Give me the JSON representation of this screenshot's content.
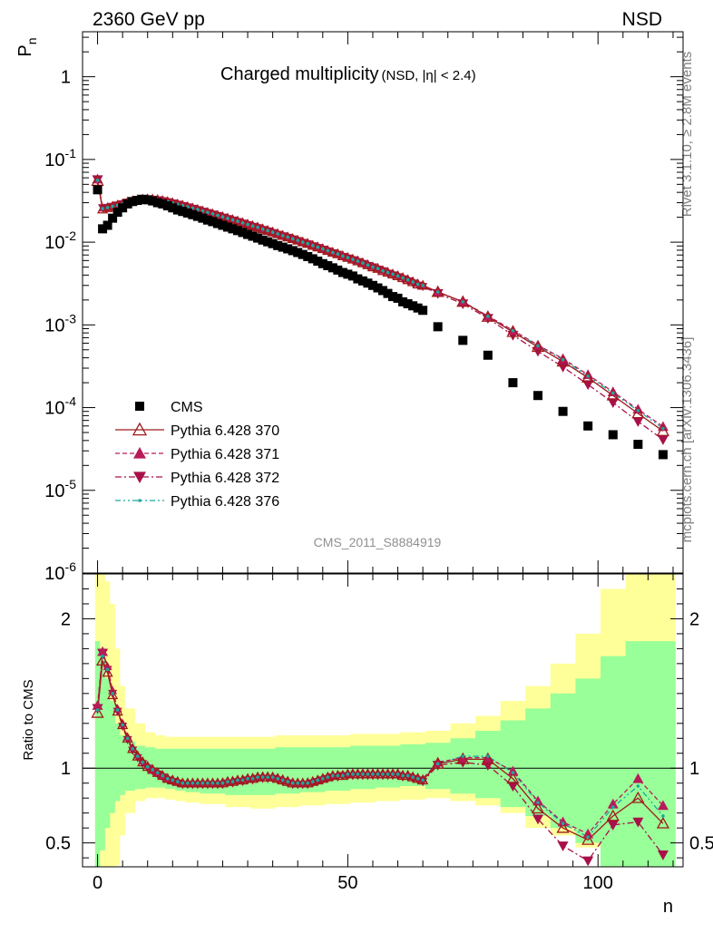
{
  "header": {
    "left": "2360 GeV pp",
    "right": "NSD"
  },
  "side_labels": {
    "rivet": "Rivet 3.1.10, ≥ 2.8M events",
    "mcplots": "mcplots.cern.ch [arXiv:1306.3436]"
  },
  "analysis_id": "CMS_2011_S8884919",
  "colors": {
    "cms": "#000000",
    "p370": "#a01a1a",
    "p371": "#b81b5a",
    "p372": "#a8104a",
    "p376": "#1aa8a0",
    "band_outer": "#ffff99",
    "band_inner": "#99ff99"
  },
  "chart_data": [
    {
      "type": "scatter",
      "title": "Charged multiplicity",
      "title_suffix": "(NSD, |η| < 2.4)",
      "ylabel": "P_n",
      "y_scale": "log",
      "ylim": [
        1e-06,
        3.5
      ],
      "xlim": [
        -3,
        117
      ],
      "y_ticks": [
        "10^-6",
        "10^-5",
        "10^-4",
        "10^-3",
        "10^-2",
        "10^-1",
        "1"
      ],
      "legend_position": "bottom-left",
      "legend": [
        {
          "key": "cms",
          "label": "CMS"
        },
        {
          "key": "p370",
          "label": "Pythia 6.428 370"
        },
        {
          "key": "p371",
          "label": "Pythia 6.428 371"
        },
        {
          "key": "p372",
          "label": "Pythia 6.428 372"
        },
        {
          "key": "p376",
          "label": "Pythia 6.428 376"
        }
      ],
      "cms": {
        "x": [
          0,
          1,
          2,
          3,
          4,
          5,
          6,
          7,
          8,
          9,
          10,
          11,
          12,
          13,
          14,
          15,
          16,
          17,
          18,
          19,
          20,
          21,
          22,
          23,
          24,
          25,
          26,
          27,
          28,
          29,
          30,
          31,
          32,
          33,
          34,
          35,
          36,
          37,
          38,
          39,
          40,
          41,
          42,
          43,
          44,
          45,
          46,
          47,
          48,
          49,
          50,
          51,
          52,
          53,
          54,
          55,
          56,
          57,
          58,
          59,
          60,
          61,
          62,
          63,
          64,
          65,
          68,
          73,
          78,
          83,
          88,
          93,
          98,
          103,
          108,
          113
        ],
        "y": [
          0.043,
          0.0145,
          0.016,
          0.0195,
          0.023,
          0.026,
          0.029,
          0.031,
          0.032,
          0.033,
          0.0325,
          0.0315,
          0.03,
          0.029,
          0.0275,
          0.026,
          0.0245,
          0.0235,
          0.0225,
          0.0215,
          0.0205,
          0.0195,
          0.0185,
          0.0177,
          0.0168,
          0.016,
          0.0152,
          0.0145,
          0.0138,
          0.0131,
          0.0124,
          0.0118,
          0.0112,
          0.0106,
          0.0101,
          0.0096,
          0.0091,
          0.0087,
          0.0083,
          0.0079,
          0.0075,
          0.0071,
          0.0067,
          0.0063,
          0.0059,
          0.0055,
          0.0052,
          0.0049,
          0.0046,
          0.0043,
          0.0041,
          0.0039,
          0.0036,
          0.0034,
          0.0032,
          0.003,
          0.0028,
          0.0026,
          0.0024,
          0.0022,
          0.0021,
          0.0019,
          0.0018,
          0.0017,
          0.0016,
          0.0015,
          0.00095,
          0.00065,
          0.00043,
          0.0002,
          0.00014,
          9e-05,
          6e-05,
          4.7e-05,
          3.6e-05,
          2.7e-05
        ]
      },
      "mc": {
        "x": [
          0,
          1,
          2,
          3,
          4,
          5,
          6,
          7,
          8,
          9,
          10,
          11,
          12,
          13,
          14,
          15,
          16,
          17,
          18,
          19,
          20,
          21,
          22,
          23,
          24,
          25,
          26,
          27,
          28,
          29,
          30,
          31,
          32,
          33,
          34,
          35,
          36,
          37,
          38,
          39,
          40,
          41,
          42,
          43,
          44,
          45,
          46,
          47,
          48,
          49,
          50,
          51,
          52,
          53,
          54,
          55,
          56,
          57,
          58,
          59,
          60,
          61,
          62,
          63,
          64,
          65,
          68,
          73,
          78,
          83,
          88,
          93,
          98,
          103,
          108,
          113
        ],
        "p370": [
          0.055,
          0.025,
          0.026,
          0.027,
          0.028,
          0.029,
          0.0305,
          0.0315,
          0.0325,
          0.033,
          0.0332,
          0.033,
          0.0325,
          0.0317,
          0.0308,
          0.0298,
          0.0287,
          0.0277,
          0.0267,
          0.0257,
          0.0247,
          0.0237,
          0.0228,
          0.0219,
          0.021,
          0.0202,
          0.0194,
          0.0186,
          0.0179,
          0.0171,
          0.0164,
          0.0157,
          0.0151,
          0.0144,
          0.0138,
          0.0132,
          0.0126,
          0.012,
          0.0115,
          0.011,
          0.0105,
          0.01,
          0.0096,
          0.0091,
          0.0087,
          0.0083,
          0.0079,
          0.0075,
          0.0072,
          0.0068,
          0.0065,
          0.0062,
          0.0059,
          0.0056,
          0.0053,
          0.005,
          0.0048,
          0.0045,
          0.0043,
          0.0041,
          0.0039,
          0.0037,
          0.0035,
          0.0033,
          0.0031,
          0.003,
          0.0025,
          0.0019,
          0.00125,
          0.00082,
          0.00054,
          0.00036,
          0.00023,
          0.00014,
          8.5e-05,
          5.2e-05
        ],
        "p371": [
          0.058,
          0.026,
          0.0265,
          0.0272,
          0.0282,
          0.0292,
          0.0305,
          0.0315,
          0.0325,
          0.0332,
          0.0334,
          0.0332,
          0.0327,
          0.0319,
          0.031,
          0.03,
          0.029,
          0.0279,
          0.0269,
          0.0259,
          0.0249,
          0.0239,
          0.023,
          0.022,
          0.0212,
          0.0203,
          0.0195,
          0.0187,
          0.018,
          0.0172,
          0.0165,
          0.0158,
          0.0152,
          0.0145,
          0.0139,
          0.0133,
          0.0127,
          0.0121,
          0.0116,
          0.0111,
          0.0106,
          0.0101,
          0.0096,
          0.0092,
          0.0088,
          0.0084,
          0.008,
          0.0076,
          0.0072,
          0.0069,
          0.0066,
          0.0063,
          0.006,
          0.0057,
          0.0054,
          0.0051,
          0.0049,
          0.0046,
          0.0044,
          0.0042,
          0.004,
          0.0038,
          0.0036,
          0.0034,
          0.0032,
          0.003,
          0.0025,
          0.0019,
          0.00128,
          0.00086,
          0.00057,
          0.00039,
          0.00025,
          0.000155,
          9.55e-05,
          5.9e-05
        ],
        "p372": [
          0.057,
          0.026,
          0.0262,
          0.027,
          0.028,
          0.029,
          0.0303,
          0.0313,
          0.0322,
          0.0329,
          0.0331,
          0.0329,
          0.0324,
          0.0316,
          0.0307,
          0.0297,
          0.0287,
          0.0276,
          0.0266,
          0.0256,
          0.0246,
          0.0236,
          0.0227,
          0.0218,
          0.0209,
          0.02,
          0.0192,
          0.0184,
          0.0177,
          0.0169,
          0.0162,
          0.0155,
          0.0149,
          0.0142,
          0.0136,
          0.013,
          0.0124,
          0.0119,
          0.0114,
          0.0109,
          0.0104,
          0.0099,
          0.0095,
          0.009,
          0.0086,
          0.0082,
          0.0078,
          0.0074,
          0.0071,
          0.0067,
          0.0064,
          0.0061,
          0.0058,
          0.0055,
          0.0052,
          0.005,
          0.0047,
          0.0045,
          0.0042,
          0.004,
          0.0038,
          0.0036,
          0.0034,
          0.0032,
          0.003,
          0.0029,
          0.0024,
          0.0018,
          0.0012,
          0.00075,
          0.00048,
          0.00031,
          0.00019,
          0.000115,
          6.8e-05,
          4.1e-05
        ],
        "p376": [
          0.056,
          0.0255,
          0.0262,
          0.027,
          0.028,
          0.029,
          0.0304,
          0.0314,
          0.0323,
          0.033,
          0.0332,
          0.033,
          0.0325,
          0.0317,
          0.0308,
          0.0298,
          0.0288,
          0.0278,
          0.0268,
          0.0258,
          0.0248,
          0.0238,
          0.0229,
          0.022,
          0.0211,
          0.0202,
          0.0194,
          0.0186,
          0.0179,
          0.0171,
          0.0164,
          0.0157,
          0.0151,
          0.0144,
          0.0138,
          0.0132,
          0.0126,
          0.012,
          0.0115,
          0.011,
          0.0105,
          0.01,
          0.0096,
          0.0091,
          0.0087,
          0.0083,
          0.0079,
          0.0075,
          0.0072,
          0.0068,
          0.0065,
          0.0062,
          0.0059,
          0.0056,
          0.0053,
          0.005,
          0.0048,
          0.0045,
          0.0043,
          0.0041,
          0.0039,
          0.0037,
          0.0035,
          0.0033,
          0.0031,
          0.003,
          0.0025,
          0.0019,
          0.00127,
          0.00085,
          0.00056,
          0.00038,
          0.00024,
          0.00015,
          9.2e-05,
          5.6e-05
        ]
      }
    },
    {
      "type": "scatter",
      "ylabel": "Ratio to CMS",
      "xlabel": "n",
      "ylim": [
        0.34,
        2.3
      ],
      "xlim": [
        -3,
        117
      ],
      "x_ticks": [
        0,
        50,
        100
      ],
      "y_ticks": [
        0.5,
        1,
        2
      ],
      "bands": {
        "x": [
          -0.5,
          0.5,
          1.5,
          2.5,
          3.5,
          4.5,
          5.5,
          7.5,
          9.5,
          11.5,
          13.5,
          15.5,
          17.5,
          20.5,
          25.5,
          30.5,
          35.5,
          40.5,
          45.5,
          50.5,
          55.5,
          60.5,
          65.5,
          70.5,
          75.5,
          80.5,
          85.5,
          90.5,
          95.5,
          100.5,
          105.5,
          110.5,
          115.5
        ],
        "outer_lo": [
          0.34,
          0.34,
          0.34,
          0.34,
          0.35,
          0.55,
          0.7,
          0.78,
          0.8,
          0.8,
          0.79,
          0.78,
          0.77,
          0.76,
          0.74,
          0.73,
          0.74,
          0.75,
          0.76,
          0.77,
          0.78,
          0.79,
          0.8,
          0.78,
          0.75,
          0.7,
          0.6,
          0.55,
          0.47,
          0.4,
          0.34,
          0.34
        ],
        "outer_hi": [
          2.3,
          2.3,
          2.25,
          2.1,
          1.8,
          1.55,
          1.4,
          1.3,
          1.24,
          1.22,
          1.21,
          1.21,
          1.21,
          1.21,
          1.21,
          1.21,
          1.22,
          1.22,
          1.22,
          1.23,
          1.23,
          1.24,
          1.25,
          1.3,
          1.35,
          1.45,
          1.55,
          1.7,
          1.9,
          2.2,
          2.3,
          2.3
        ],
        "inner_lo": [
          0.34,
          0.45,
          0.6,
          0.7,
          0.78,
          0.82,
          0.85,
          0.86,
          0.87,
          0.87,
          0.86,
          0.85,
          0.84,
          0.83,
          0.82,
          0.82,
          0.83,
          0.84,
          0.85,
          0.86,
          0.87,
          0.88,
          0.86,
          0.83,
          0.8,
          0.74,
          0.68,
          0.6,
          0.5,
          0.34,
          0.34,
          0.34
        ],
        "inner_hi": [
          1.85,
          1.8,
          1.6,
          1.45,
          1.3,
          1.22,
          1.18,
          1.15,
          1.14,
          1.13,
          1.13,
          1.13,
          1.13,
          1.13,
          1.13,
          1.13,
          1.14,
          1.14,
          1.14,
          1.15,
          1.15,
          1.16,
          1.17,
          1.2,
          1.25,
          1.32,
          1.4,
          1.5,
          1.6,
          1.75,
          1.85,
          1.85
        ]
      },
      "ratio": {
        "x": [
          0,
          1,
          2,
          3,
          4,
          5,
          6,
          7,
          8,
          9,
          10,
          11,
          12,
          13,
          14,
          15,
          16,
          17,
          18,
          19,
          20,
          21,
          22,
          23,
          24,
          25,
          26,
          27,
          28,
          29,
          30,
          31,
          32,
          33,
          34,
          35,
          36,
          37,
          38,
          39,
          40,
          41,
          42,
          43,
          44,
          45,
          46,
          47,
          48,
          49,
          50,
          51,
          52,
          53,
          54,
          55,
          56,
          57,
          58,
          59,
          60,
          61,
          62,
          63,
          64,
          65,
          68,
          73,
          78,
          83,
          88,
          93,
          98,
          103,
          108,
          113
        ],
        "p370": [
          1.37,
          1.72,
          1.64,
          1.49,
          1.38,
          1.29,
          1.2,
          1.13,
          1.08,
          1.04,
          1.01,
          0.99,
          0.97,
          0.95,
          0.93,
          0.92,
          0.91,
          0.9,
          0.9,
          0.9,
          0.9,
          0.9,
          0.9,
          0.9,
          0.9,
          0.9,
          0.91,
          0.91,
          0.92,
          0.92,
          0.93,
          0.93,
          0.94,
          0.94,
          0.94,
          0.94,
          0.93,
          0.92,
          0.91,
          0.9,
          0.9,
          0.9,
          0.9,
          0.91,
          0.92,
          0.93,
          0.94,
          0.95,
          0.95,
          0.95,
          0.96,
          0.96,
          0.96,
          0.96,
          0.96,
          0.96,
          0.96,
          0.96,
          0.96,
          0.96,
          0.96,
          0.95,
          0.95,
          0.94,
          0.93,
          0.92,
          1.03,
          1.06,
          1.06,
          0.93,
          0.73,
          0.6,
          0.52,
          0.68,
          0.8,
          0.63
        ],
        "p371": [
          1.42,
          1.78,
          1.68,
          1.52,
          1.4,
          1.3,
          1.21,
          1.14,
          1.09,
          1.05,
          1.02,
          0.99,
          0.97,
          0.95,
          0.93,
          0.92,
          0.91,
          0.9,
          0.9,
          0.9,
          0.9,
          0.9,
          0.9,
          0.9,
          0.9,
          0.91,
          0.91,
          0.92,
          0.92,
          0.93,
          0.93,
          0.94,
          0.94,
          0.95,
          0.95,
          0.94,
          0.94,
          0.93,
          0.92,
          0.91,
          0.9,
          0.9,
          0.91,
          0.91,
          0.92,
          0.93,
          0.94,
          0.95,
          0.96,
          0.96,
          0.96,
          0.97,
          0.97,
          0.97,
          0.97,
          0.97,
          0.97,
          0.97,
          0.97,
          0.97,
          0.97,
          0.96,
          0.96,
          0.95,
          0.94,
          0.93,
          1.04,
          1.07,
          1.07,
          0.98,
          0.78,
          0.64,
          0.56,
          0.76,
          0.93,
          0.75
        ],
        "p372": [
          1.4,
          1.77,
          1.66,
          1.5,
          1.38,
          1.28,
          1.19,
          1.12,
          1.07,
          1.03,
          1.0,
          0.98,
          0.96,
          0.94,
          0.92,
          0.91,
          0.9,
          0.89,
          0.89,
          0.89,
          0.89,
          0.89,
          0.89,
          0.89,
          0.89,
          0.89,
          0.9,
          0.9,
          0.91,
          0.91,
          0.92,
          0.92,
          0.93,
          0.93,
          0.93,
          0.93,
          0.92,
          0.91,
          0.9,
          0.89,
          0.89,
          0.89,
          0.89,
          0.9,
          0.91,
          0.92,
          0.93,
          0.94,
          0.94,
          0.95,
          0.95,
          0.95,
          0.95,
          0.95,
          0.95,
          0.95,
          0.95,
          0.95,
          0.95,
          0.95,
          0.95,
          0.94,
          0.94,
          0.93,
          0.92,
          0.91,
          1.02,
          1.04,
          1.02,
          0.88,
          0.66,
          0.48,
          0.38,
          0.62,
          0.64,
          0.42
        ],
        "p376": [
          1.39,
          1.75,
          1.66,
          1.5,
          1.39,
          1.29,
          1.2,
          1.13,
          1.08,
          1.04,
          1.01,
          0.99,
          0.97,
          0.95,
          0.93,
          0.92,
          0.91,
          0.9,
          0.9,
          0.9,
          0.9,
          0.9,
          0.9,
          0.9,
          0.9,
          0.9,
          0.91,
          0.91,
          0.92,
          0.92,
          0.93,
          0.93,
          0.94,
          0.94,
          0.94,
          0.94,
          0.93,
          0.92,
          0.91,
          0.9,
          0.9,
          0.9,
          0.9,
          0.91,
          0.92,
          0.93,
          0.94,
          0.95,
          0.95,
          0.95,
          0.96,
          0.96,
          0.96,
          0.96,
          0.96,
          0.96,
          0.96,
          0.96,
          0.96,
          0.96,
          0.96,
          0.95,
          0.95,
          0.94,
          0.93,
          0.92,
          1.03,
          1.08,
          1.08,
          0.97,
          0.77,
          0.63,
          0.54,
          0.74,
          0.88,
          0.68
        ]
      }
    }
  ]
}
